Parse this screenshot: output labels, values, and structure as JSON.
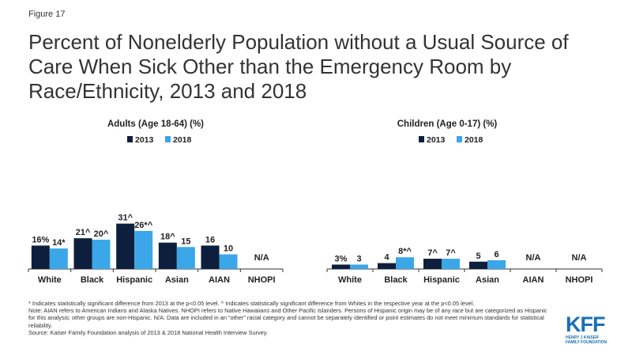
{
  "figure_label": "Figure 17",
  "title": "Percent of Nonelderly Population without a Usual Source of Care When Sick Other than the Emergency Room by Race/Ethnicity, 2013 and 2018",
  "colors": {
    "series_2013": "#0d1f3c",
    "series_2018": "#3ba7e8",
    "axis": "#333333"
  },
  "chart_data": [
    {
      "type": "bar",
      "title": "Adults (Age 18-64) (%)",
      "categories": [
        "White",
        "Black",
        "Hispanic",
        "Asian",
        "AIAN",
        "NHOPI"
      ],
      "series": [
        {
          "name": "2013",
          "values": [
            16,
            21,
            31,
            18,
            16,
            null
          ],
          "labels": [
            "16%",
            "21^",
            "31^",
            "18^",
            "16",
            ""
          ]
        },
        {
          "name": "2018",
          "values": [
            14,
            20,
            26,
            15,
            10,
            null
          ],
          "labels": [
            "14*",
            "20^",
            "26*^",
            "15",
            "10",
            ""
          ]
        }
      ],
      "na_labels": [
        "",
        "",
        "",
        "",
        "",
        "N/A"
      ],
      "legend_position": "top-center",
      "ylim": [
        0,
        35
      ],
      "grid": false
    },
    {
      "type": "bar",
      "title": "Children (Age 0-17) (%)",
      "categories": [
        "White",
        "Black",
        "Hispanic",
        "Asian",
        "AIAN",
        "NHOPI"
      ],
      "series": [
        {
          "name": "2013",
          "values": [
            3,
            4,
            7,
            5,
            null,
            null
          ],
          "labels": [
            "3%",
            "4",
            "7^",
            "5",
            "",
            ""
          ]
        },
        {
          "name": "2018",
          "values": [
            3,
            8,
            7,
            6,
            null,
            null
          ],
          "labels": [
            "3",
            "8*^",
            "7^",
            "6",
            "",
            ""
          ]
        }
      ],
      "na_labels": [
        "",
        "",
        "",
        "",
        "N/A",
        "N/A"
      ],
      "legend_position": "top-center",
      "ylim": [
        0,
        35
      ],
      "grid": false
    }
  ],
  "notes": [
    "* Indicates statistically significant difference from 2013 at the p<0.05 level. ^ Indicates statistically significant difference from Whites in the respective year at the p<0.05 level.",
    "Note: AIAN refers to American Indians and Alaska Natives. NHOPI refers to Native Hawaiians and Other Pacific Islanders. Persons of Hispanic origin may be of any race but are categorized as Hispanic for this analysis; other groups are non-Hispanic. N/A: Data are included in an “other” racial category and cannot be separately identified or point estimates do not meet minimum standards for statistical reliability.",
    "Source: Kaiser Family Foundation analysis of 2013 & 2018 National Health Interview Survey."
  ],
  "logo": {
    "mark": "KFF",
    "line1": "HENRY J KAISER",
    "line2": "FAMILY FOUNDATION"
  }
}
